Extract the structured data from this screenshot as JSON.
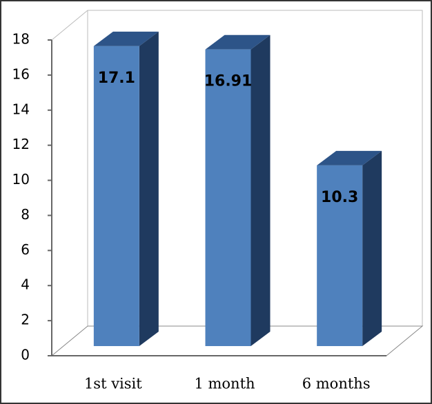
{
  "chart_data": {
    "type": "bar3d",
    "categories": [
      "1st visit",
      "1 month",
      "6 months"
    ],
    "values": [
      17.1,
      16.91,
      10.3
    ],
    "color": "#4f81bd",
    "ylim": [
      0,
      18
    ],
    "yticks": [
      0,
      2,
      4,
      6,
      8,
      10,
      12,
      14,
      16,
      18
    ]
  }
}
